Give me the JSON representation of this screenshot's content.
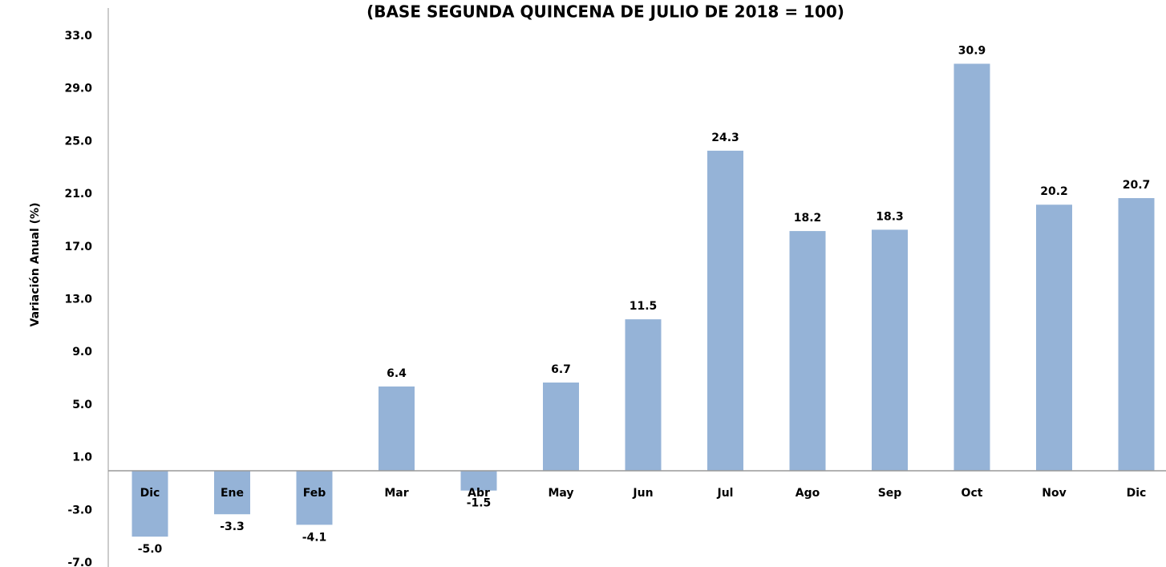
{
  "chart_data": {
    "type": "bar",
    "title": "(BASE SEGUNDA QUINCENA DE JULIO DE 2018 = 100)",
    "y_label": "Variación Anual (%)",
    "categories": [
      "Dic",
      "Ene",
      "Feb",
      "Mar",
      "Abr",
      "May",
      "Jun",
      "Jul",
      "Ago",
      "Sep",
      "Oct",
      "Nov",
      "Dic"
    ],
    "values": [
      -5.0,
      -3.3,
      -4.1,
      6.4,
      -1.5,
      6.7,
      11.5,
      24.3,
      18.2,
      18.3,
      30.9,
      20.2,
      20.7
    ],
    "value_labels": [
      "-5.0",
      "-3.3",
      "-4.1",
      "6.4",
      "-1.5",
      "6.7",
      "11.5",
      "24.3",
      "18.2",
      "18.3",
      "30.9",
      "20.2",
      "20.7"
    ],
    "color": "#95b3d7",
    "ylim": [
      -7,
      33
    ],
    "yticks": [
      {
        "value": -7,
        "label": "-7.0"
      },
      {
        "value": -3,
        "label": "-3.0"
      },
      {
        "value": 1,
        "label": "1.0"
      },
      {
        "value": 5,
        "label": "5.0"
      },
      {
        "value": 9,
        "label": "9.0"
      },
      {
        "value": 13,
        "label": "13.0"
      },
      {
        "value": 17,
        "label": "17.0"
      },
      {
        "value": 21,
        "label": "21.0"
      },
      {
        "value": 25,
        "label": "25.0"
      },
      {
        "value": 29,
        "label": "29.0"
      },
      {
        "value": 33,
        "label": "33.0"
      }
    ],
    "grid": false
  }
}
